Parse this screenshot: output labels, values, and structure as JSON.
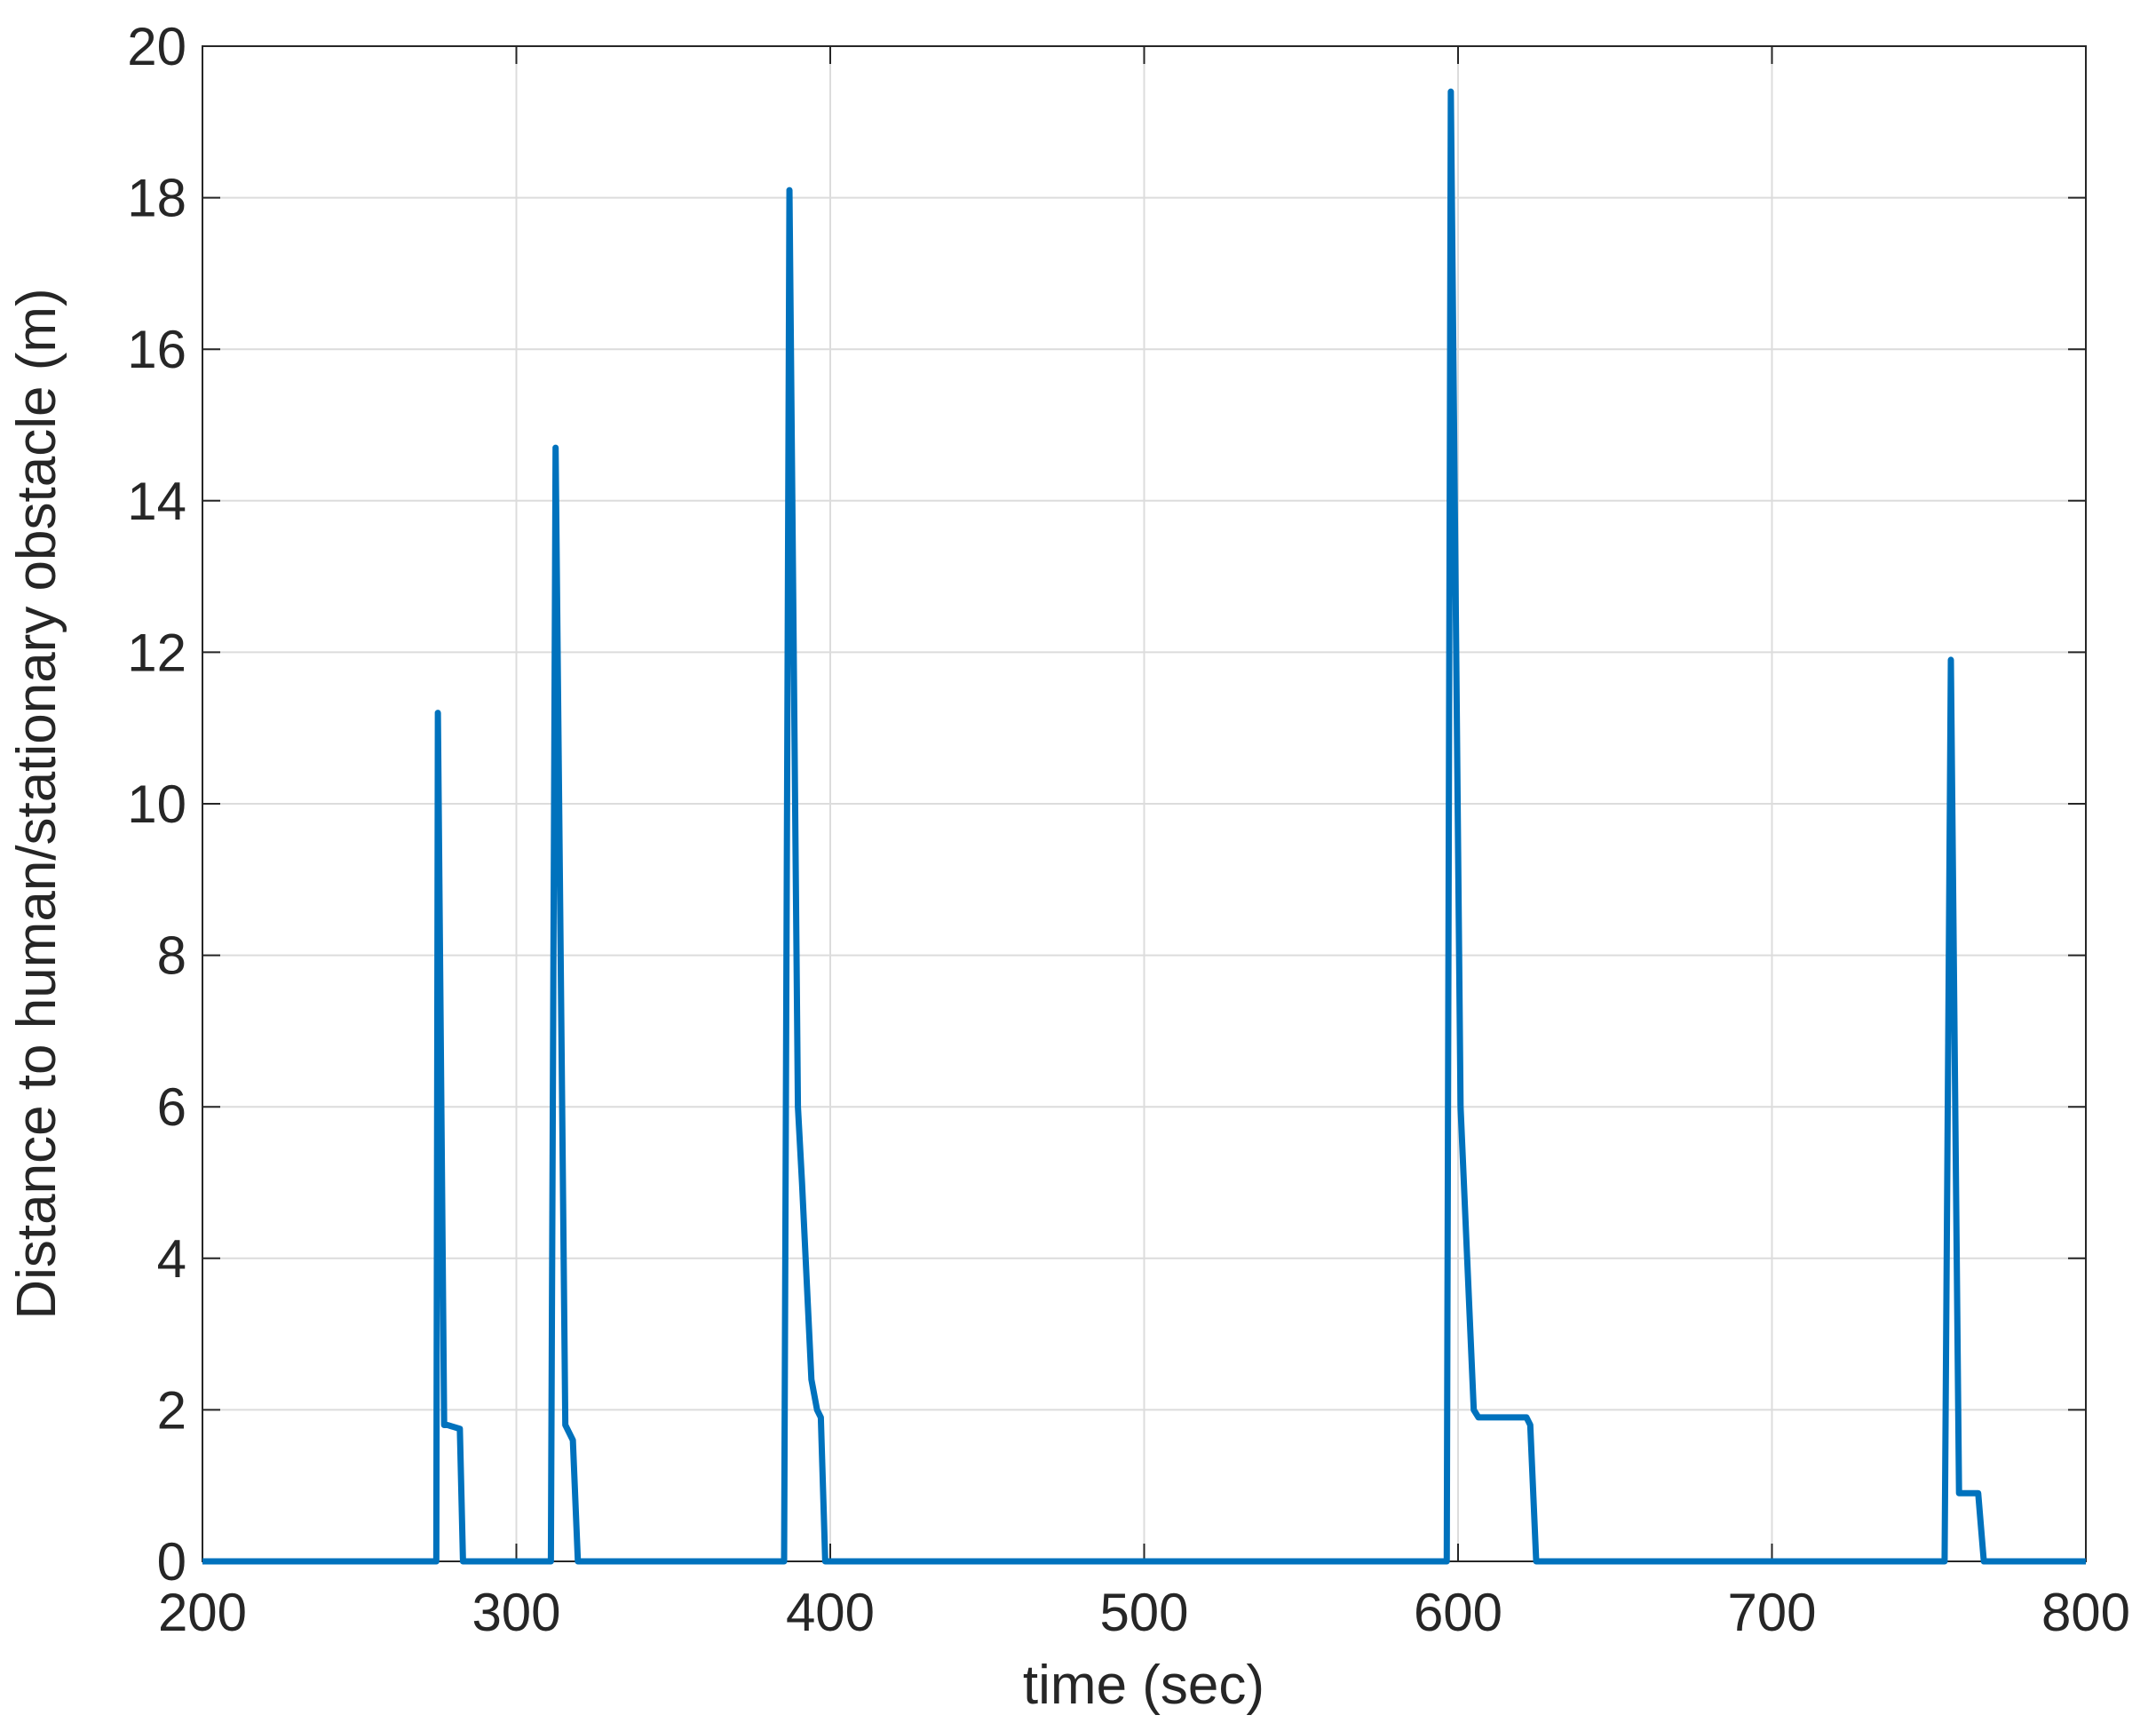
{
  "chart_data": {
    "type": "line",
    "x_label": "time (sec)",
    "y_label": "Distance to human/stationary obstacle (m)",
    "xlim": [
      200,
      800
    ],
    "ylim": [
      0,
      20
    ],
    "xticks": [
      200,
      300,
      400,
      500,
      600,
      700,
      800
    ],
    "yticks": [
      0,
      2,
      4,
      6,
      8,
      10,
      12,
      14,
      16,
      18,
      20
    ],
    "grid": true,
    "series": [
      {
        "color": "#0072bd",
        "x": [
          200,
          274.5,
          275,
          277,
          278,
          282,
          283,
          311,
          312.5,
          315.6,
          318,
          319.6,
          385.3,
          387,
          389.7,
          391,
          394,
          395.8,
          397,
          398.4,
          596.4,
          597.7,
          600.8,
          605,
          606.5,
          621.8,
          623,
          624.9,
          755,
          757,
          759.6,
          765.7,
          767.5,
          800
        ],
        "values": [
          0,
          0,
          11.2,
          1.8,
          1.8,
          1.75,
          0,
          0,
          14.7,
          1.8,
          1.6,
          0,
          0,
          18.1,
          6,
          5,
          2.4,
          2,
          1.9,
          0,
          0,
          19.4,
          6,
          2,
          1.9,
          1.9,
          1.8,
          0,
          0,
          11.9,
          0.9,
          0.9,
          0,
          0
        ]
      }
    ]
  }
}
